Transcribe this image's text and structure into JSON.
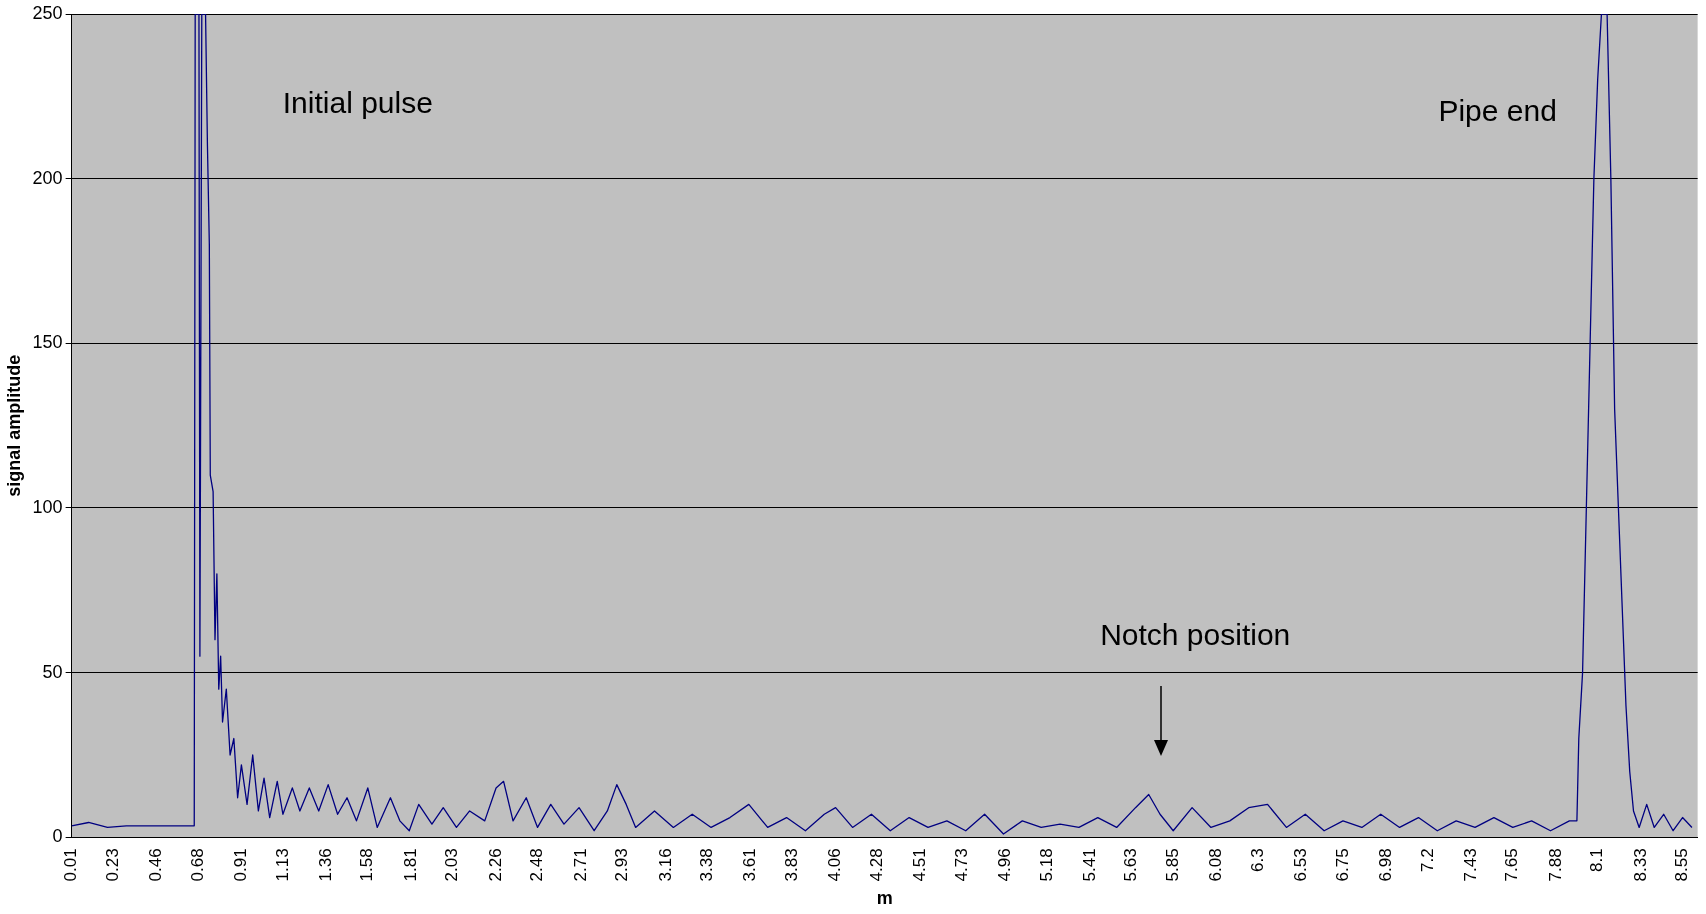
{
  "chart_data": {
    "type": "line",
    "xlabel": "m",
    "ylabel": "signal amplitude",
    "x": [
      0.01,
      0.1,
      0.2,
      0.3,
      0.5,
      0.66,
      0.665,
      0.685,
      0.69,
      0.7,
      0.72,
      0.73,
      0.74,
      0.745,
      0.76,
      0.77,
      0.78,
      0.79,
      0.8,
      0.81,
      0.83,
      0.85,
      0.87,
      0.89,
      0.91,
      0.94,
      0.97,
      1.0,
      1.03,
      1.06,
      1.1,
      1.13,
      1.18,
      1.22,
      1.27,
      1.32,
      1.37,
      1.42,
      1.47,
      1.52,
      1.58,
      1.63,
      1.7,
      1.75,
      1.8,
      1.85,
      1.92,
      1.98,
      2.05,
      2.12,
      2.2,
      2.26,
      2.3,
      2.35,
      2.42,
      2.48,
      2.55,
      2.62,
      2.7,
      2.78,
      2.85,
      2.9,
      2.95,
      3.0,
      3.1,
      3.2,
      3.3,
      3.4,
      3.5,
      3.6,
      3.7,
      3.8,
      3.9,
      4.0,
      4.06,
      4.15,
      4.25,
      4.35,
      4.45,
      4.55,
      4.65,
      4.75,
      4.85,
      4.95,
      5.05,
      5.15,
      5.25,
      5.35,
      5.45,
      5.55,
      5.65,
      5.72,
      5.78,
      5.85,
      5.95,
      6.05,
      6.15,
      6.25,
      6.35,
      6.45,
      6.55,
      6.65,
      6.75,
      6.85,
      6.95,
      7.05,
      7.15,
      7.25,
      7.35,
      7.45,
      7.55,
      7.65,
      7.75,
      7.85,
      7.95,
      7.99,
      8.0,
      8.02,
      8.04,
      8.06,
      8.08,
      8.1,
      8.12,
      8.15,
      8.17,
      8.19,
      8.21,
      8.23,
      8.25,
      8.27,
      8.29,
      8.32,
      8.36,
      8.4,
      8.45,
      8.5,
      8.55,
      8.6
    ],
    "series": [
      {
        "color": "#000080",
        "values": [
          3.5,
          4.5,
          3,
          3.5,
          3.5,
          3.5,
          250,
          250,
          55,
          250,
          250,
          210,
          180,
          110,
          105,
          60,
          80,
          45,
          55,
          35,
          45,
          25,
          30,
          12,
          22,
          10,
          25,
          8,
          18,
          6,
          17,
          7,
          15,
          8,
          15,
          8,
          16,
          7,
          12,
          5,
          15,
          3,
          12,
          5,
          2,
          10,
          4,
          9,
          3,
          8,
          5,
          15,
          17,
          5,
          12,
          3,
          10,
          4,
          9,
          2,
          8,
          16,
          10,
          3,
          8,
          3,
          7,
          3,
          6,
          10,
          3,
          6,
          2,
          7,
          9,
          3,
          7,
          2,
          6,
          3,
          5,
          2,
          7,
          1,
          5,
          3,
          4,
          3,
          6,
          3,
          9,
          13,
          7,
          2,
          9,
          3,
          5,
          9,
          10,
          3,
          7,
          2,
          5,
          3,
          7,
          3,
          6,
          2,
          5,
          3,
          6,
          3,
          5,
          2,
          5,
          5,
          30,
          50,
          100,
          150,
          200,
          230,
          250,
          250,
          200,
          130,
          100,
          70,
          40,
          20,
          8,
          3,
          10,
          3,
          7,
          2,
          6,
          3
        ]
      }
    ],
    "xlim": [
      0.01,
      8.63
    ],
    "xticks": [
      0.01,
      0.23,
      0.46,
      0.68,
      0.91,
      1.13,
      1.36,
      1.58,
      1.81,
      2.03,
      2.26,
      2.48,
      2.71,
      2.93,
      3.16,
      3.38,
      3.61,
      3.83,
      4.06,
      4.28,
      4.51,
      4.73,
      4.96,
      5.18,
      5.41,
      5.63,
      5.85,
      6.08,
      6.3,
      6.53,
      6.75,
      6.98,
      7.2,
      7.43,
      7.65,
      7.88,
      8.1,
      8.33,
      8.55
    ],
    "ylim": [
      0,
      250
    ],
    "yticks": [
      0,
      50,
      100,
      150,
      200,
      250
    ],
    "grid": "y",
    "legend": false,
    "marker": "none",
    "line_style": "solid",
    "annotations": [
      "Initial pulse",
      "Pipe end",
      "Notch position"
    ]
  }
}
